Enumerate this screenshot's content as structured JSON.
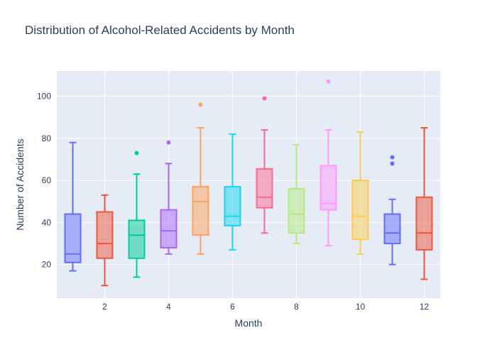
{
  "chart_data": {
    "type": "box",
    "title": "Distribution of Alcohol-Related Accidents by Month",
    "xlabel": "Month",
    "ylabel": "Number of Accidents",
    "xlim": [
      0.5,
      12.5
    ],
    "ylim": [
      4,
      112
    ],
    "x_ticks": [
      2,
      4,
      6,
      8,
      10,
      12
    ],
    "y_ticks": [
      20,
      40,
      60,
      80,
      100
    ],
    "grid": true,
    "plot_background": "#e5ecf6",
    "series": [
      {
        "month": 1,
        "min": 17,
        "q1": 21,
        "median": 25,
        "q3": 44,
        "max": 78,
        "outliers": [],
        "color": "#636efa"
      },
      {
        "month": 2,
        "min": 10,
        "q1": 23,
        "median": 30,
        "q3": 45,
        "max": 53,
        "outliers": [],
        "color": "#ef553b"
      },
      {
        "month": 3,
        "min": 14,
        "q1": 23,
        "median": 34,
        "q3": 41,
        "max": 63,
        "outliers": [
          73
        ],
        "color": "#00cc96"
      },
      {
        "month": 4,
        "min": 25,
        "q1": 28,
        "median": 36,
        "q3": 46,
        "max": 68,
        "outliers": [
          78
        ],
        "color": "#ab63fa"
      },
      {
        "month": 5,
        "min": 25,
        "q1": 34,
        "median": 50,
        "q3": 57,
        "max": 85,
        "outliers": [
          96
        ],
        "color": "#ffa15a"
      },
      {
        "month": 6,
        "min": 27,
        "q1": 38.5,
        "median": 43,
        "q3": 57,
        "max": 82,
        "outliers": [],
        "color": "#19d3f3"
      },
      {
        "month": 7,
        "min": 35,
        "q1": 47,
        "median": 52,
        "q3": 65.5,
        "max": 84,
        "outliers": [
          99
        ],
        "color": "#ff6692"
      },
      {
        "month": 8,
        "min": 30,
        "q1": 35,
        "median": 44,
        "q3": 56,
        "max": 77,
        "outliers": [],
        "color": "#b6e880"
      },
      {
        "month": 9,
        "min": 29,
        "q1": 46,
        "median": 49,
        "q3": 67,
        "max": 84,
        "outliers": [
          107
        ],
        "color": "#ff97ff"
      },
      {
        "month": 10,
        "min": 25,
        "q1": 32,
        "median": 43,
        "q3": 60,
        "max": 83,
        "outliers": [],
        "color": "#fecb52"
      },
      {
        "month": 11,
        "min": 20,
        "q1": 30,
        "median": 35,
        "q3": 44,
        "max": 51,
        "outliers": [
          68,
          71
        ],
        "color": "#636efa"
      },
      {
        "month": 12,
        "min": 13,
        "q1": 27,
        "median": 35,
        "q3": 52,
        "max": 85,
        "outliers": [],
        "color": "#ef553b"
      }
    ]
  }
}
